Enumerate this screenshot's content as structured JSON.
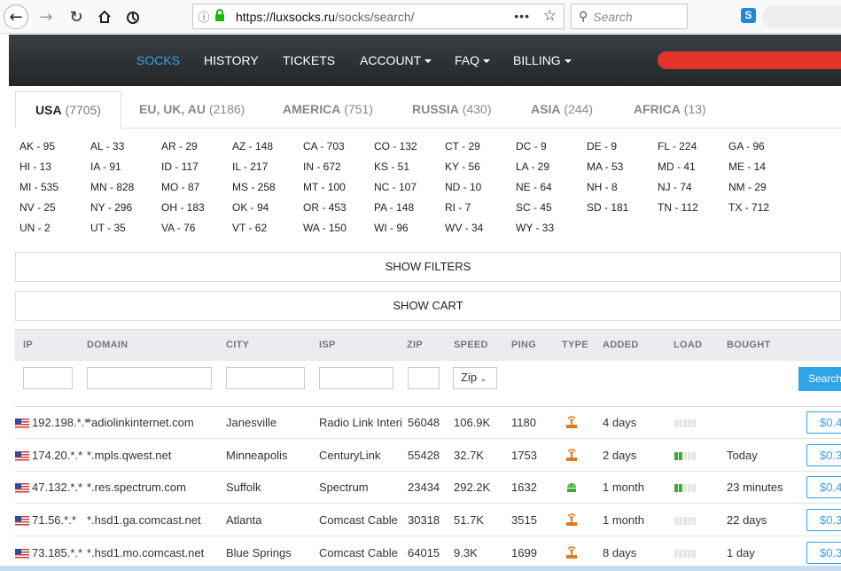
{
  "browser": {
    "url_host": "https://luxsocks.ru",
    "url_path": "/socks/search/",
    "search_placeholder": "Search",
    "icons": [
      "back-arrow-icon",
      "forward-arrow-icon",
      "reload-icon",
      "home-icon",
      "extension-icon",
      "info-icon",
      "lock-icon",
      "more-icon",
      "star-icon",
      "search-icon",
      "skype-icon"
    ]
  },
  "nav": {
    "items": [
      {
        "label": "SOCKS",
        "active": true,
        "dropdown": false
      },
      {
        "label": "HISTORY",
        "active": false,
        "dropdown": false
      },
      {
        "label": "TICKETS",
        "active": false,
        "dropdown": false
      },
      {
        "label": "ACCOUNT",
        "active": false,
        "dropdown": true
      },
      {
        "label": "FAQ",
        "active": false,
        "dropdown": true
      },
      {
        "label": "BILLING",
        "active": false,
        "dropdown": true
      }
    ]
  },
  "tabs": [
    {
      "name": "USA",
      "count": "(7705)",
      "active": true
    },
    {
      "name": "EU, UK, AU",
      "count": "(2186)",
      "active": false
    },
    {
      "name": "AMERICA",
      "count": "(751)",
      "active": false
    },
    {
      "name": "RUSSIA",
      "count": "(430)",
      "active": false
    },
    {
      "name": "ASIA",
      "count": "(244)",
      "active": false
    },
    {
      "name": "AFRICA",
      "count": "(13)",
      "active": false
    }
  ],
  "states": [
    [
      "AK - 95",
      "AL - 33",
      "AR - 29",
      "AZ - 148",
      "CA - 703",
      "CO - 132",
      "CT - 29",
      "DC - 9",
      "DE - 9",
      "FL - 224",
      "GA - 96"
    ],
    [
      "HI - 13",
      "IA - 91",
      "ID - 117",
      "IL - 217",
      "IN - 672",
      "KS - 51",
      "KY - 56",
      "LA - 29",
      "MA - 53",
      "MD - 41",
      "ME - 14"
    ],
    [
      "MI - 535",
      "MN - 828",
      "MO - 87",
      "MS - 258",
      "MT - 100",
      "NC - 107",
      "ND - 10",
      "NE - 64",
      "NH - 8",
      "NJ - 74",
      "NM - 29"
    ],
    [
      "NV - 25",
      "NY - 296",
      "OH - 183",
      "OK - 94",
      "OR - 453",
      "PA - 148",
      "RI - 7",
      "SC - 45",
      "SD - 181",
      "TN - 112",
      "TX - 712"
    ],
    [
      "UN - 2",
      "UT - 35",
      "VA - 76",
      "VT - 62",
      "WA - 150",
      "WI - 96",
      "WV - 34",
      "WY - 33"
    ]
  ],
  "buttons": {
    "show_filters": "SHOW FILTERS",
    "show_cart": "SHOW CART",
    "search": "Search"
  },
  "table": {
    "headers": [
      "IP",
      "DOMAIN",
      "CITY",
      "ISP",
      "ZIP",
      "SPEED",
      "PING",
      "TYPE",
      "ADDED",
      "LOAD",
      "BOUGHT"
    ],
    "zip_select_value": "Zip",
    "colors": {
      "accent": "#2fa4e7",
      "load_on": "#3cab34",
      "type_wifi": "#e07a1f",
      "type_android": "#3cab34"
    },
    "rows": [
      {
        "ip": "192.198.*.*",
        "domain": "*adiolinkinternet.com",
        "city": "Janesville",
        "isp": "Radio Link Interi",
        "zip": "56048",
        "speed": "106.9K",
        "ping": "1180",
        "type": "router-icon",
        "added": "4 days",
        "load": 0,
        "bought": "",
        "price": "$0.4"
      },
      {
        "ip": "174.20.*.*",
        "domain": "*.mpls.qwest.net",
        "city": "Minneapolis",
        "isp": "CenturyLink",
        "zip": "55428",
        "speed": "32.7K",
        "ping": "1753",
        "type": "router-icon",
        "added": "2 days",
        "load": 0.4,
        "bought": "Today",
        "price": "$0.3"
      },
      {
        "ip": "47.132.*.*",
        "domain": "*.res.spectrum.com",
        "city": "Suffolk",
        "isp": "Spectrum",
        "zip": "23434",
        "speed": "292.2K",
        "ping": "1632",
        "type": "android-icon",
        "added": "1 month",
        "load": 0.4,
        "bought": "23 minutes",
        "price": "$0.4"
      },
      {
        "ip": "71.56.*.*",
        "domain": "*.hsd1.ga.comcast.net",
        "city": "Atlanta",
        "isp": "Comcast Cable",
        "zip": "30318",
        "speed": "51.7K",
        "ping": "3515",
        "type": "router-icon",
        "added": "1 month",
        "load": 0,
        "bought": "22 days",
        "price": "$0.3"
      },
      {
        "ip": "73.185.*.*",
        "domain": "*.hsd1.mo.comcast.net",
        "city": "Blue Springs",
        "isp": "Comcast Cable",
        "zip": "64015",
        "speed": "9.3K",
        "ping": "1699",
        "type": "router-icon",
        "added": "8 days",
        "load": 0,
        "bought": "1 day",
        "price": "$0.3"
      }
    ]
  }
}
